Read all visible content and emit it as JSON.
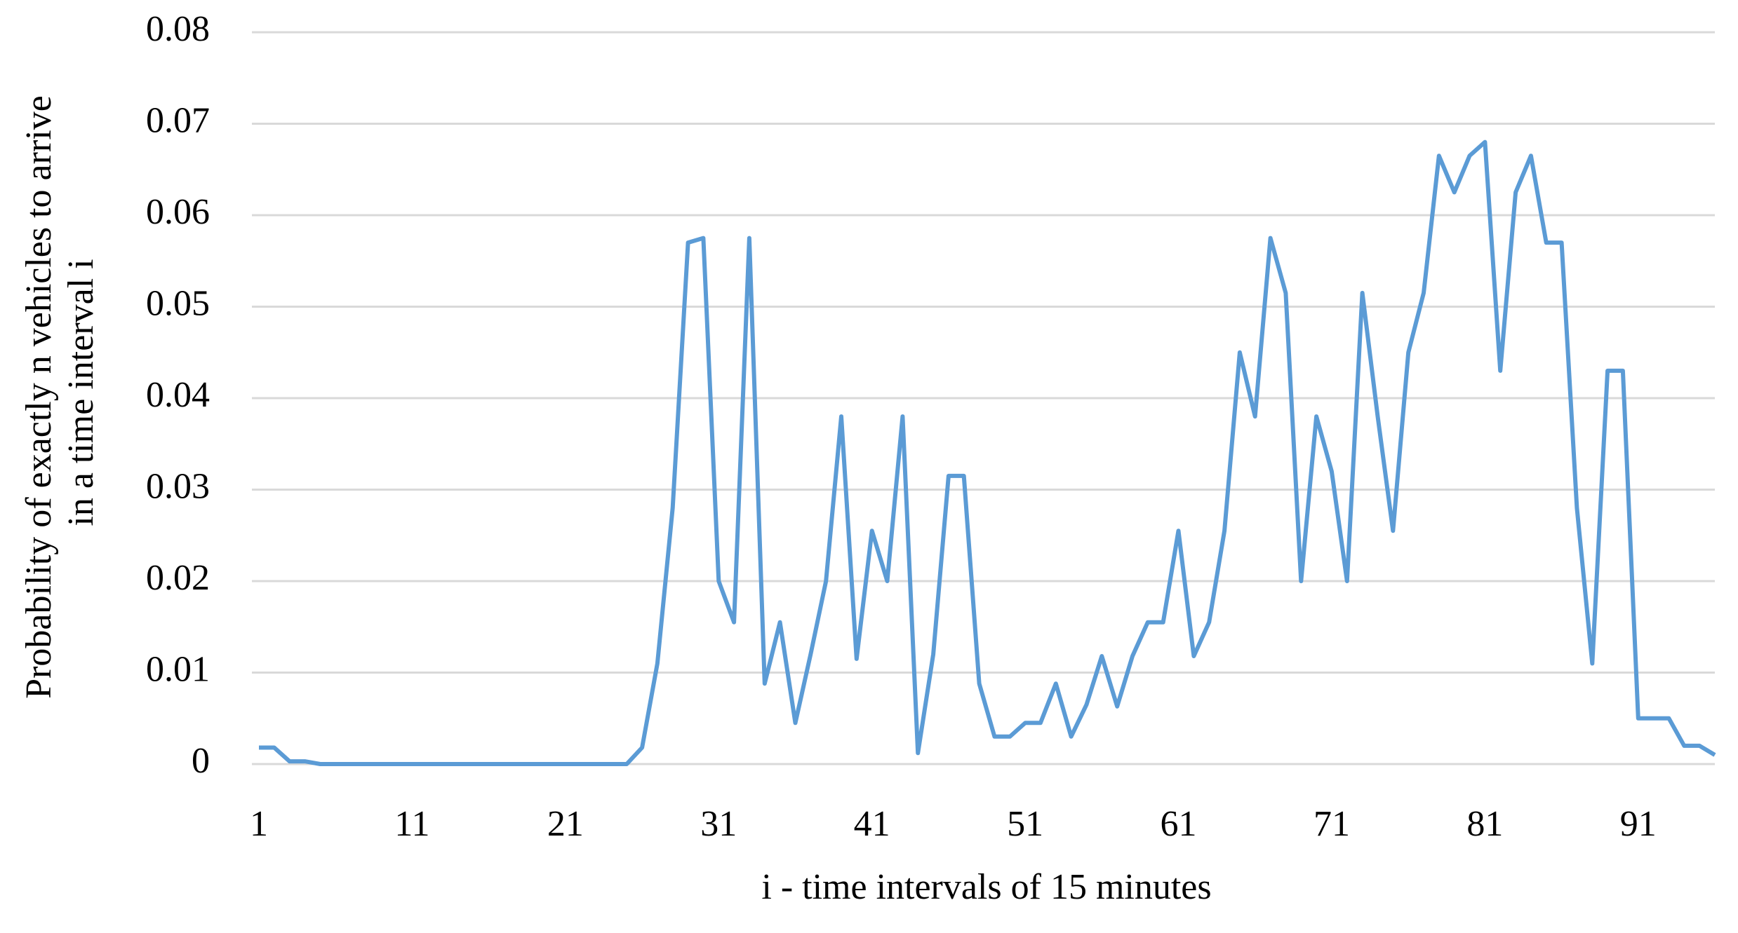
{
  "chart_data": {
    "type": "line",
    "x_label": "i - time intervals of 15 minutes",
    "y_label": [
      "Probability of exactly n vehicles to arrive",
      "in a time interval i"
    ],
    "x": [
      1,
      2,
      3,
      4,
      5,
      6,
      7,
      8,
      9,
      10,
      11,
      12,
      13,
      14,
      15,
      16,
      17,
      18,
      19,
      20,
      21,
      22,
      23,
      24,
      25,
      26,
      27,
      28,
      29,
      30,
      31,
      32,
      33,
      34,
      35,
      36,
      37,
      38,
      39,
      40,
      41,
      42,
      43,
      44,
      45,
      46,
      47,
      48,
      49,
      50,
      51,
      52,
      53,
      54,
      55,
      56,
      57,
      58,
      59,
      60,
      61,
      62,
      63,
      64,
      65,
      66,
      67,
      68,
      69,
      70,
      71,
      72,
      73,
      74,
      75,
      76,
      77,
      78,
      79,
      80,
      81,
      82,
      83,
      84,
      85,
      86,
      87,
      88,
      89,
      90,
      91,
      92,
      93,
      94,
      95,
      96
    ],
    "series": [
      {
        "name": "Probability",
        "color": "#5b9bd5",
        "values": [
          0.0018,
          0.0018,
          0.0003,
          0.0003,
          0,
          0,
          0,
          0,
          0,
          0,
          0,
          0,
          0,
          0,
          0,
          0,
          0,
          0,
          0,
          0,
          0,
          0,
          0,
          0,
          0,
          0.0018,
          0.011,
          0.028,
          0.057,
          0.0575,
          0.02,
          0.0155,
          0.0575,
          0.0088,
          0.0155,
          0.0045,
          0.012,
          0.02,
          0.038,
          0.0115,
          0.0255,
          0.02,
          0.038,
          0.0012,
          0.012,
          0.0315,
          0.0315,
          0.0088,
          0.003,
          0.003,
          0.0045,
          0.0045,
          0.0088,
          0.003,
          0.0065,
          0.0118,
          0.0063,
          0.0118,
          0.0155,
          0.0155,
          0.0255,
          0.0118,
          0.0155,
          0.0255,
          0.045,
          0.038,
          0.0575,
          0.0515,
          0.02,
          0.038,
          0.032,
          0.02,
          0.0515,
          0.038,
          0.0255,
          0.045,
          0.0515,
          0.0665,
          0.0625,
          0.0665,
          0.068,
          0.043,
          0.0625,
          0.0665,
          0.057,
          0.057,
          0.028,
          0.011,
          0.043,
          0.043,
          0.005,
          0.005,
          0.005,
          0.002,
          0.002,
          0.001
        ]
      }
    ],
    "xlim": [
      1,
      96
    ],
    "xticks": [
      1,
      11,
      21,
      31,
      41,
      51,
      61,
      71,
      81,
      91
    ],
    "ylim": [
      0,
      0.08
    ],
    "yticks": [
      0,
      0.01,
      0.02,
      0.03,
      0.04,
      0.05,
      0.06,
      0.07,
      0.08
    ],
    "grid": true
  }
}
